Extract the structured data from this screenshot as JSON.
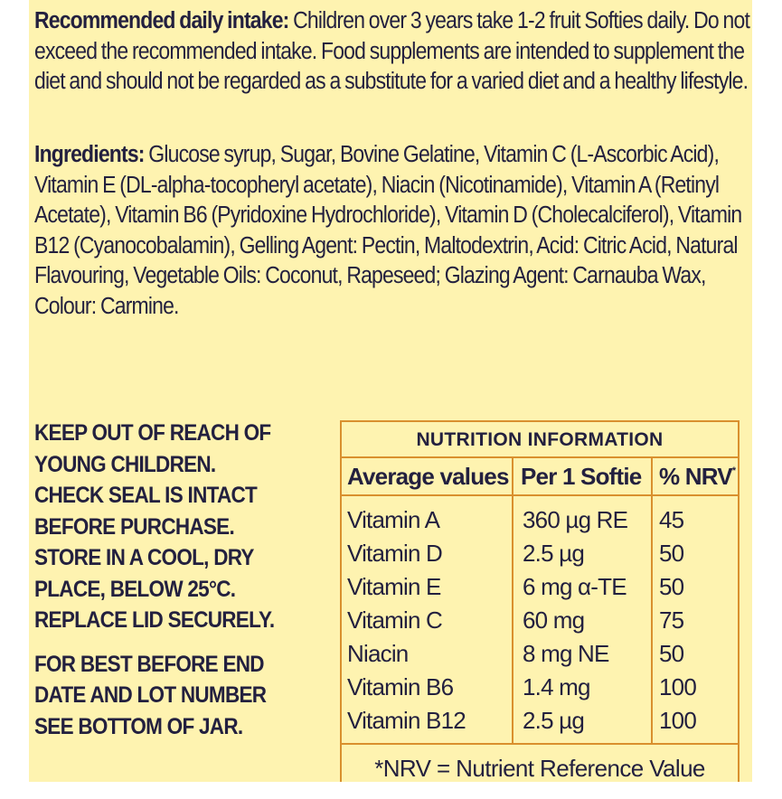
{
  "intake": {
    "label": "Recommended daily intake:",
    "text": " Children over 3 years take 1-2 fruit Softies daily. Do not exceed the recommended intake. Food supplements are intended to supplement the diet and should not be regarded as a substitute for a varied diet and a healthy lifestyle."
  },
  "ingredients": {
    "label": "Ingredients:",
    "text": " Glucose syrup, Sugar, Bovine Gelatine, Vitamin C (L-Ascorbic Acid), Vitamin E (DL-alpha-tocopheryl acetate), Niacin (Nicotinamide), Vitamin A (Retinyl Acetate), Vitamin B6 (Pyridoxine Hydrochloride), Vitamin D (Cholecalciferol), Vitamin B12 (Cyanocobalamin), Gelling Agent: Pectin, Maltodextrin, Acid: Citric Acid, Natural Flavouring, Vegetable  Oils: Coconut, Rapeseed; Glazing Agent: Carnauba Wax, Colour: Carmine."
  },
  "warnings": {
    "block1": [
      "KEEP OUT OF REACH OF",
      "YOUNG CHILDREN.",
      "CHECK SEAL IS INTACT",
      "BEFORE PURCHASE.",
      "STORE IN A COOL, DRY",
      "PLACE, BELOW 25°C.",
      "REPLACE LID SECURELY."
    ],
    "block2": [
      "FOR BEST BEFORE END",
      "DATE AND LOT NUMBER",
      "SEE BOTTOM OF JAR."
    ]
  },
  "nutrition": {
    "title": "NUTRITION INFORMATION",
    "headers": {
      "nutrient": "Average values",
      "amount": "Per 1 Softie",
      "nrv": "% NRV",
      "nrv_mark": "*"
    },
    "rows": [
      {
        "nutrient": "Vitamin A",
        "amount": "360 µg RE",
        "nrv": "45"
      },
      {
        "nutrient": "Vitamin D",
        "amount": "2.5 µg",
        "nrv": "50"
      },
      {
        "nutrient": "Vitamin E",
        "amount": "6 mg α-TE",
        "nrv": "50"
      },
      {
        "nutrient": "Vitamin C",
        "amount": "60 mg",
        "nrv": "75"
      },
      {
        "nutrient": "Niacin",
        "amount": "8 mg NE",
        "nrv": "50"
      },
      {
        "nutrient": "Vitamin B6",
        "amount": "1.4 mg",
        "nrv": "100"
      },
      {
        "nutrient": "Vitamin B12",
        "amount": "2.5 µg",
        "nrv": "100"
      }
    ],
    "footnote": "*NRV = Nutrient Reference Value"
  },
  "colors": {
    "background": "#fef3b0",
    "text": "#23203f",
    "table_border": "#d9902e"
  }
}
